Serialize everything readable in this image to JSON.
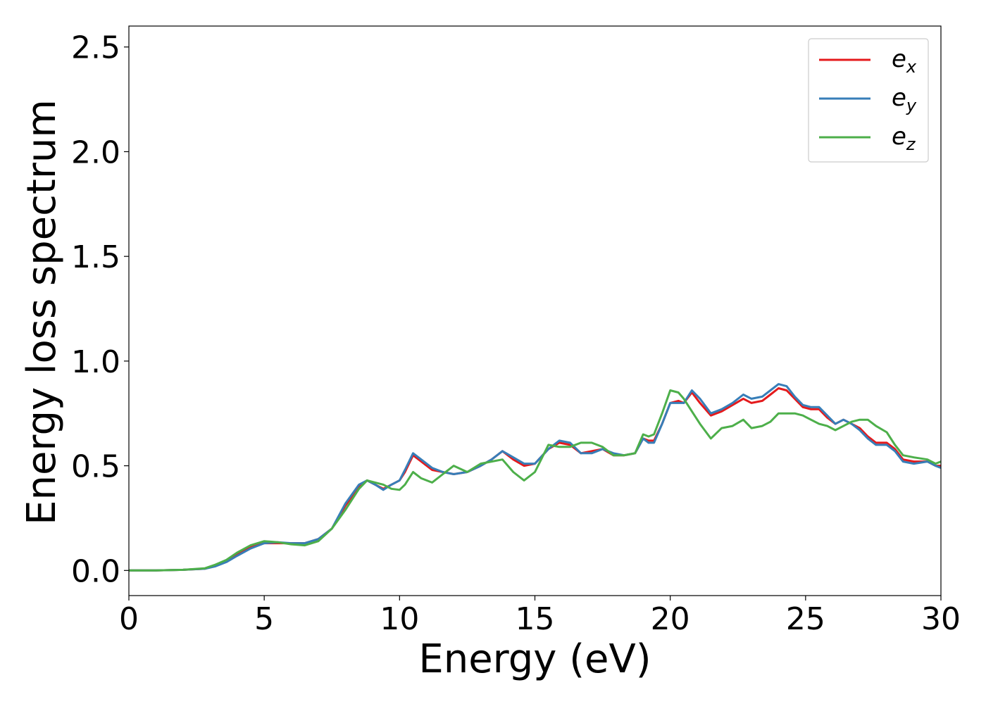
{
  "chart_data": {
    "type": "line",
    "title": "",
    "xlabel": "Energy (eV)",
    "ylabel": "Energy loss spectrum",
    "xlim": [
      0,
      30
    ],
    "ylim": [
      -0.12,
      2.6
    ],
    "xticks": [
      0,
      5,
      10,
      15,
      20,
      25,
      30
    ],
    "xtick_labels": [
      "0",
      "5",
      "10",
      "15",
      "20",
      "25",
      "30"
    ],
    "yticks": [
      0.0,
      0.5,
      1.0,
      1.5,
      2.0,
      2.5
    ],
    "ytick_labels": [
      "0.0",
      "0.5",
      "1.0",
      "1.5",
      "2.0",
      "2.5"
    ],
    "grid": false,
    "legend_position": "top-right",
    "series": [
      {
        "name": "e_x",
        "legend_main": "e",
        "legend_sub": "x",
        "color": "#e41a1c",
        "x": [
          0,
          1,
          2,
          2.8,
          3.2,
          3.6,
          4.0,
          4.5,
          5.0,
          5.5,
          6.0,
          6.5,
          7.0,
          7.5,
          8.0,
          8.5,
          8.8,
          9.1,
          9.4,
          9.7,
          10.0,
          10.2,
          10.5,
          10.8,
          11.2,
          11.6,
          12.0,
          12.5,
          13.0,
          13.4,
          13.8,
          14.2,
          14.6,
          15.0,
          15.5,
          15.9,
          16.3,
          16.7,
          17.1,
          17.5,
          17.9,
          18.3,
          18.7,
          19.0,
          19.2,
          19.4,
          19.7,
          20.0,
          20.3,
          20.5,
          20.8,
          21.1,
          21.5,
          21.9,
          22.3,
          22.7,
          23.0,
          23.4,
          23.7,
          24.0,
          24.3,
          24.6,
          24.9,
          25.2,
          25.5,
          25.8,
          26.1,
          26.4,
          26.7,
          27.0,
          27.3,
          27.6,
          28.0,
          28.3,
          28.6,
          29.0,
          29.5,
          29.8,
          30.0
        ],
        "y": [
          0.0,
          0.0,
          0.003,
          0.008,
          0.022,
          0.045,
          0.075,
          0.11,
          0.13,
          0.13,
          0.13,
          0.13,
          0.15,
          0.2,
          0.31,
          0.4,
          0.43,
          0.41,
          0.39,
          0.41,
          0.43,
          0.47,
          0.55,
          0.52,
          0.48,
          0.47,
          0.46,
          0.47,
          0.5,
          0.53,
          0.57,
          0.53,
          0.5,
          0.51,
          0.58,
          0.61,
          0.6,
          0.56,
          0.57,
          0.58,
          0.55,
          0.55,
          0.56,
          0.63,
          0.62,
          0.62,
          0.7,
          0.8,
          0.81,
          0.8,
          0.85,
          0.8,
          0.74,
          0.76,
          0.79,
          0.82,
          0.8,
          0.81,
          0.84,
          0.87,
          0.86,
          0.82,
          0.78,
          0.77,
          0.77,
          0.73,
          0.7,
          0.72,
          0.7,
          0.68,
          0.64,
          0.61,
          0.61,
          0.58,
          0.53,
          0.52,
          0.52,
          0.5,
          0.5
        ]
      },
      {
        "name": "e_y",
        "legend_main": "e",
        "legend_sub": "y",
        "color": "#377eb8",
        "x": [
          0,
          1,
          2,
          2.8,
          3.2,
          3.6,
          4.0,
          4.5,
          5.0,
          5.5,
          6.0,
          6.5,
          7.0,
          7.5,
          8.0,
          8.5,
          8.8,
          9.1,
          9.4,
          9.7,
          10.0,
          10.2,
          10.5,
          10.8,
          11.2,
          11.6,
          12.0,
          12.5,
          13.0,
          13.4,
          13.8,
          14.2,
          14.6,
          15.0,
          15.5,
          15.9,
          16.3,
          16.7,
          17.1,
          17.5,
          17.9,
          18.3,
          18.7,
          19.0,
          19.2,
          19.4,
          19.7,
          20.0,
          20.3,
          20.5,
          20.8,
          21.1,
          21.5,
          21.9,
          22.3,
          22.7,
          23.0,
          23.4,
          23.7,
          24.0,
          24.3,
          24.6,
          24.9,
          25.2,
          25.5,
          25.8,
          26.1,
          26.4,
          26.7,
          27.0,
          27.3,
          27.6,
          28.0,
          28.3,
          28.6,
          29.0,
          29.5,
          29.8,
          30.0
        ],
        "y": [
          0.0,
          0.0,
          0.003,
          0.008,
          0.02,
          0.04,
          0.07,
          0.105,
          0.13,
          0.135,
          0.13,
          0.13,
          0.15,
          0.2,
          0.32,
          0.41,
          0.43,
          0.41,
          0.385,
          0.41,
          0.43,
          0.48,
          0.56,
          0.53,
          0.49,
          0.47,
          0.46,
          0.47,
          0.5,
          0.53,
          0.57,
          0.54,
          0.51,
          0.51,
          0.58,
          0.62,
          0.61,
          0.56,
          0.56,
          0.58,
          0.56,
          0.55,
          0.56,
          0.63,
          0.61,
          0.61,
          0.7,
          0.8,
          0.8,
          0.8,
          0.86,
          0.82,
          0.75,
          0.77,
          0.8,
          0.84,
          0.82,
          0.83,
          0.86,
          0.89,
          0.88,
          0.83,
          0.79,
          0.78,
          0.78,
          0.74,
          0.7,
          0.72,
          0.7,
          0.67,
          0.63,
          0.6,
          0.6,
          0.57,
          0.52,
          0.51,
          0.52,
          0.5,
          0.49
        ]
      },
      {
        "name": "e_z",
        "legend_main": "e",
        "legend_sub": "z",
        "color": "#4daf4a",
        "x": [
          0,
          1,
          2,
          2.8,
          3.2,
          3.6,
          4.0,
          4.5,
          5.0,
          5.5,
          6.0,
          6.5,
          7.0,
          7.5,
          8.0,
          8.5,
          8.8,
          9.1,
          9.4,
          9.7,
          10.0,
          10.2,
          10.5,
          10.8,
          11.2,
          11.6,
          12.0,
          12.5,
          13.0,
          13.4,
          13.8,
          14.2,
          14.6,
          15.0,
          15.5,
          15.9,
          16.3,
          16.7,
          17.1,
          17.5,
          17.9,
          18.3,
          18.7,
          19.0,
          19.2,
          19.4,
          19.7,
          20.0,
          20.3,
          20.5,
          20.8,
          21.1,
          21.5,
          21.9,
          22.3,
          22.7,
          23.0,
          23.4,
          23.7,
          24.0,
          24.3,
          24.6,
          24.9,
          25.2,
          25.5,
          25.8,
          26.1,
          26.4,
          26.7,
          27.0,
          27.3,
          27.6,
          28.0,
          28.3,
          28.6,
          29.0,
          29.5,
          29.8,
          30.0
        ],
        "y": [
          0.0,
          0.0,
          0.003,
          0.01,
          0.028,
          0.05,
          0.085,
          0.12,
          0.14,
          0.135,
          0.125,
          0.12,
          0.14,
          0.2,
          0.29,
          0.39,
          0.43,
          0.42,
          0.41,
          0.39,
          0.385,
          0.41,
          0.47,
          0.44,
          0.42,
          0.46,
          0.5,
          0.47,
          0.51,
          0.52,
          0.53,
          0.47,
          0.43,
          0.47,
          0.6,
          0.59,
          0.59,
          0.61,
          0.61,
          0.59,
          0.55,
          0.55,
          0.56,
          0.65,
          0.64,
          0.65,
          0.75,
          0.86,
          0.85,
          0.82,
          0.76,
          0.7,
          0.63,
          0.68,
          0.69,
          0.72,
          0.68,
          0.69,
          0.71,
          0.75,
          0.75,
          0.75,
          0.74,
          0.72,
          0.7,
          0.69,
          0.67,
          0.69,
          0.71,
          0.72,
          0.72,
          0.69,
          0.66,
          0.6,
          0.55,
          0.54,
          0.53,
          0.51,
          0.52
        ]
      }
    ]
  }
}
